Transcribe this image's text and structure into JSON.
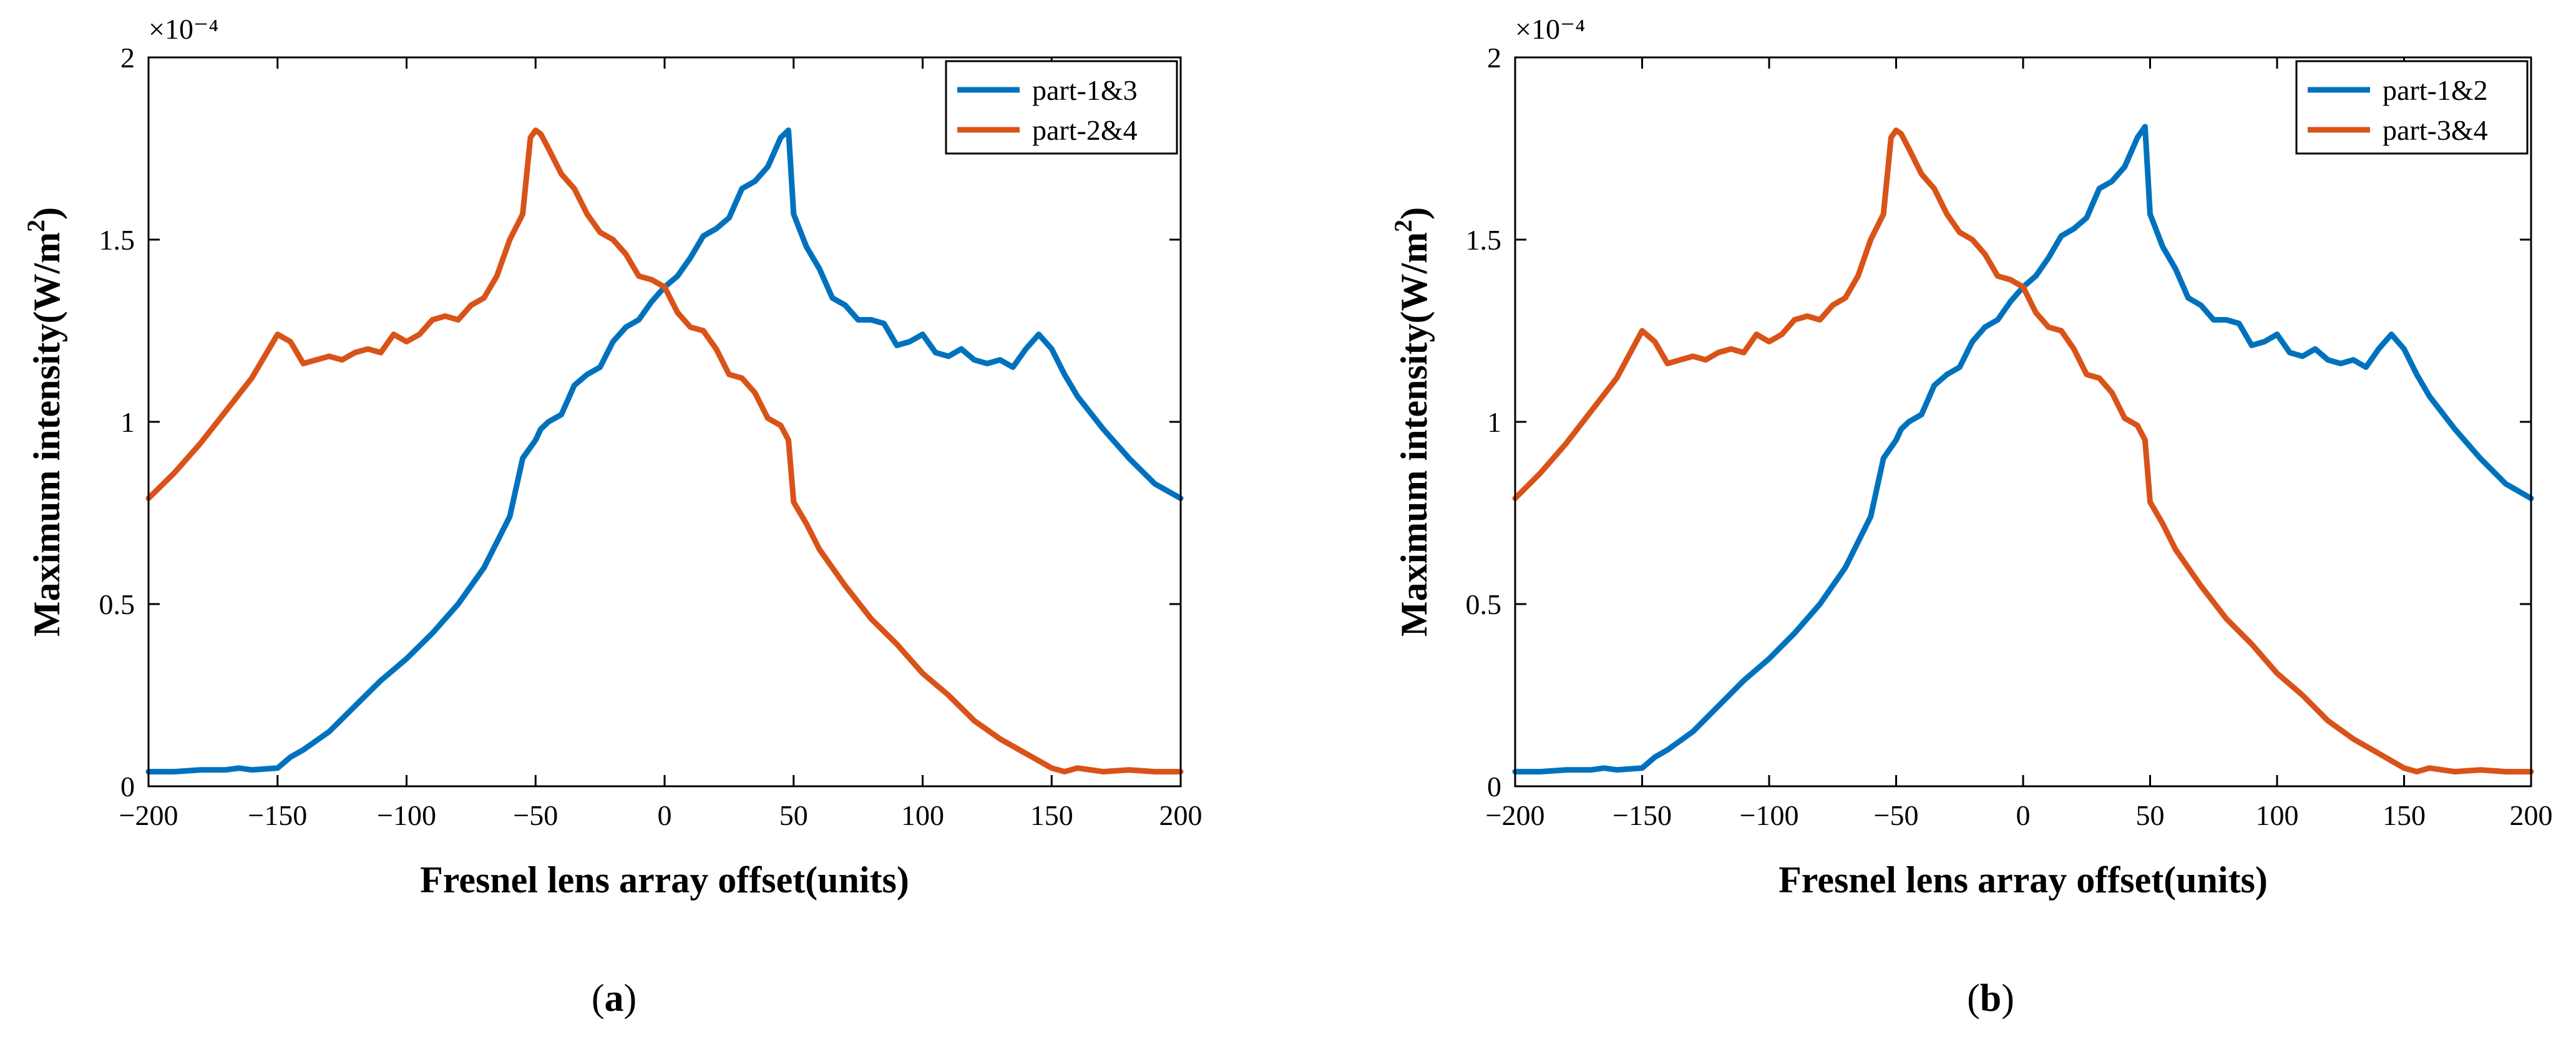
{
  "figure": {
    "panel_labels": [
      "(a)",
      "(b)"
    ]
  },
  "chart_data": [
    {
      "type": "line",
      "panel": "a",
      "title": "",
      "xlabel": "Fresnel lens array offset(units)",
      "ylabel": "Maximum intensity(W/m^2)",
      "y_exponent": "×10⁻⁴",
      "xlim": [
        -200,
        200
      ],
      "ylim": [
        0,
        2
      ],
      "xticks": [
        -200,
        -150,
        -100,
        -50,
        0,
        50,
        100,
        150,
        200
      ],
      "xtick_labels": [
        "−200",
        "−150",
        "−100",
        "−50",
        "0",
        "50",
        "100",
        "150",
        "200"
      ],
      "yticks": [
        0,
        0.5,
        1,
        1.5,
        2
      ],
      "ytick_labels": [
        "0",
        "0.5",
        "1",
        "1.5",
        "2"
      ],
      "grid": false,
      "legend_position": "top-right",
      "series": [
        {
          "name": "part-1&3",
          "color": "#0072BD",
          "x": [
            -200,
            -190,
            -180,
            -170,
            -165,
            -160,
            -150,
            -145,
            -140,
            -130,
            -120,
            -110,
            -100,
            -90,
            -80,
            -70,
            -60,
            -55,
            -50,
            -48,
            -45,
            -40,
            -35,
            -30,
            -25,
            -20,
            -15,
            -10,
            -5,
            0,
            5,
            10,
            15,
            20,
            25,
            30,
            35,
            40,
            45,
            48,
            50,
            55,
            60,
            65,
            70,
            75,
            80,
            85,
            90,
            95,
            100,
            105,
            110,
            115,
            120,
            125,
            130,
            135,
            140,
            145,
            150,
            155,
            160,
            170,
            180,
            190,
            200
          ],
          "values": [
            0.04,
            0.04,
            0.045,
            0.045,
            0.05,
            0.045,
            0.05,
            0.08,
            0.1,
            0.15,
            0.22,
            0.29,
            0.35,
            0.42,
            0.5,
            0.6,
            0.74,
            0.9,
            0.95,
            0.98,
            1.0,
            1.02,
            1.1,
            1.13,
            1.15,
            1.22,
            1.26,
            1.28,
            1.33,
            1.37,
            1.4,
            1.45,
            1.51,
            1.53,
            1.56,
            1.64,
            1.66,
            1.7,
            1.78,
            1.8,
            1.57,
            1.48,
            1.42,
            1.34,
            1.32,
            1.28,
            1.28,
            1.27,
            1.21,
            1.22,
            1.24,
            1.19,
            1.18,
            1.2,
            1.17,
            1.16,
            1.17,
            1.15,
            1.2,
            1.24,
            1.2,
            1.13,
            1.07,
            0.98,
            0.9,
            0.83,
            0.79
          ]
        },
        {
          "name": "part-2&4",
          "color": "#D95319",
          "x": [
            -200,
            -190,
            -180,
            -170,
            -160,
            -150,
            -145,
            -140,
            -135,
            -130,
            -125,
            -120,
            -115,
            -110,
            -105,
            -100,
            -95,
            -90,
            -85,
            -80,
            -75,
            -70,
            -65,
            -60,
            -55,
            -52,
            -50,
            -48,
            -45,
            -40,
            -35,
            -30,
            -25,
            -20,
            -15,
            -10,
            -5,
            0,
            5,
            10,
            15,
            20,
            25,
            30,
            35,
            40,
            45,
            48,
            50,
            55,
            60,
            70,
            80,
            90,
            100,
            110,
            120,
            130,
            140,
            145,
            150,
            155,
            160,
            170,
            180,
            190,
            200
          ],
          "values": [
            0.79,
            0.86,
            0.94,
            1.03,
            1.12,
            1.24,
            1.22,
            1.16,
            1.17,
            1.18,
            1.17,
            1.19,
            1.2,
            1.19,
            1.24,
            1.22,
            1.24,
            1.28,
            1.29,
            1.28,
            1.32,
            1.34,
            1.4,
            1.5,
            1.57,
            1.78,
            1.8,
            1.79,
            1.75,
            1.68,
            1.64,
            1.57,
            1.52,
            1.5,
            1.46,
            1.4,
            1.39,
            1.37,
            1.3,
            1.26,
            1.25,
            1.2,
            1.13,
            1.12,
            1.08,
            1.01,
            0.99,
            0.95,
            0.78,
            0.72,
            0.65,
            0.55,
            0.46,
            0.39,
            0.31,
            0.25,
            0.18,
            0.13,
            0.09,
            0.07,
            0.05,
            0.04,
            0.05,
            0.04,
            0.045,
            0.04,
            0.04
          ]
        }
      ]
    },
    {
      "type": "line",
      "panel": "b",
      "title": "",
      "xlabel": "Fresnel lens array offset(units)",
      "ylabel": "Maximum intensity(W/m^2)",
      "y_exponent": "×10⁻⁴",
      "xlim": [
        -200,
        200
      ],
      "ylim": [
        0,
        2
      ],
      "xticks": [
        -200,
        -150,
        -100,
        -50,
        0,
        50,
        100,
        150,
        200
      ],
      "xtick_labels": [
        "−200",
        "−150",
        "−100",
        "−50",
        "0",
        "50",
        "100",
        "150",
        "200"
      ],
      "yticks": [
        0,
        0.5,
        1,
        1.5,
        2
      ],
      "ytick_labels": [
        "0",
        "0.5",
        "1",
        "1.5",
        "2"
      ],
      "grid": false,
      "legend_position": "top-right",
      "series": [
        {
          "name": "part-1&2",
          "color": "#0072BD",
          "x": [
            -200,
            -190,
            -180,
            -170,
            -165,
            -160,
            -150,
            -145,
            -140,
            -130,
            -120,
            -110,
            -100,
            -90,
            -80,
            -70,
            -60,
            -55,
            -50,
            -48,
            -45,
            -40,
            -35,
            -30,
            -25,
            -20,
            -15,
            -10,
            -5,
            0,
            5,
            10,
            15,
            20,
            25,
            30,
            35,
            40,
            45,
            48,
            50,
            55,
            60,
            65,
            70,
            75,
            80,
            85,
            90,
            95,
            100,
            105,
            110,
            115,
            120,
            125,
            130,
            135,
            140,
            145,
            150,
            155,
            160,
            170,
            180,
            190,
            200
          ],
          "values": [
            0.04,
            0.04,
            0.045,
            0.045,
            0.05,
            0.045,
            0.05,
            0.08,
            0.1,
            0.15,
            0.22,
            0.29,
            0.35,
            0.42,
            0.5,
            0.6,
            0.74,
            0.9,
            0.95,
            0.98,
            1.0,
            1.02,
            1.1,
            1.13,
            1.15,
            1.22,
            1.26,
            1.28,
            1.33,
            1.37,
            1.4,
            1.45,
            1.51,
            1.53,
            1.56,
            1.64,
            1.66,
            1.7,
            1.78,
            1.81,
            1.57,
            1.48,
            1.42,
            1.34,
            1.32,
            1.28,
            1.28,
            1.27,
            1.21,
            1.22,
            1.24,
            1.19,
            1.18,
            1.2,
            1.17,
            1.16,
            1.17,
            1.15,
            1.2,
            1.24,
            1.2,
            1.13,
            1.07,
            0.98,
            0.9,
            0.83,
            0.79
          ]
        },
        {
          "name": "part-3&4",
          "color": "#D95319",
          "x": [
            -200,
            -190,
            -180,
            -170,
            -160,
            -150,
            -145,
            -140,
            -135,
            -130,
            -125,
            -120,
            -115,
            -110,
            -105,
            -100,
            -95,
            -90,
            -85,
            -80,
            -75,
            -70,
            -65,
            -60,
            -55,
            -52,
            -50,
            -48,
            -45,
            -40,
            -35,
            -30,
            -25,
            -20,
            -15,
            -10,
            -5,
            0,
            5,
            10,
            15,
            20,
            25,
            30,
            35,
            40,
            45,
            48,
            50,
            55,
            60,
            70,
            80,
            90,
            100,
            110,
            120,
            130,
            140,
            145,
            150,
            155,
            160,
            170,
            180,
            190,
            200
          ],
          "values": [
            0.79,
            0.86,
            0.94,
            1.03,
            1.12,
            1.25,
            1.22,
            1.16,
            1.17,
            1.18,
            1.17,
            1.19,
            1.2,
            1.19,
            1.24,
            1.22,
            1.24,
            1.28,
            1.29,
            1.28,
            1.32,
            1.34,
            1.4,
            1.5,
            1.57,
            1.78,
            1.8,
            1.79,
            1.75,
            1.68,
            1.64,
            1.57,
            1.52,
            1.5,
            1.46,
            1.4,
            1.39,
            1.37,
            1.3,
            1.26,
            1.25,
            1.2,
            1.13,
            1.12,
            1.08,
            1.01,
            0.99,
            0.95,
            0.78,
            0.72,
            0.65,
            0.55,
            0.46,
            0.39,
            0.31,
            0.25,
            0.18,
            0.13,
            0.09,
            0.07,
            0.05,
            0.04,
            0.05,
            0.04,
            0.045,
            0.04,
            0.04
          ]
        }
      ]
    }
  ]
}
